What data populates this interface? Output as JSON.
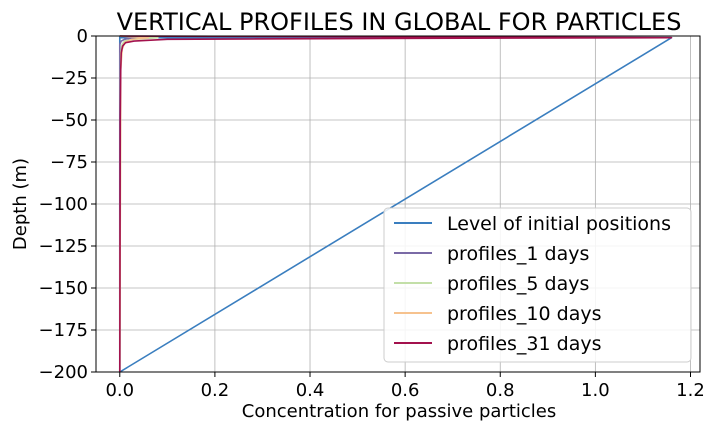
{
  "chart_data": {
    "type": "line",
    "title": "VERTICAL PROFILES IN GLOBAL FOR PARTICLES",
    "xlabel": "Concentration for passive particles",
    "ylabel": "Depth (m)",
    "xlim": [
      -0.05,
      1.22
    ],
    "ylim": [
      -200,
      0
    ],
    "xticks": [
      0.0,
      0.2,
      0.4,
      0.6,
      0.8,
      1.0,
      1.2
    ],
    "xtick_labels": [
      "0.0",
      "0.2",
      "0.4",
      "0.6",
      "0.8",
      "1.0",
      "1.2"
    ],
    "yticks": [
      0,
      -25,
      -50,
      -75,
      -100,
      -125,
      -150,
      -175,
      -200
    ],
    "ytick_labels": [
      "0",
      "−25",
      "−50",
      "−75",
      "−100",
      "−125",
      "−150",
      "−175",
      "−200"
    ],
    "grid": true,
    "legend_position": "lower-right",
    "series": [
      {
        "name": "Level of initial positions",
        "color": "#3a7ebf",
        "points": [
          [
            0.0,
            -1
          ],
          [
            0.0,
            -200
          ],
          [
            1.16,
            -1
          ]
        ],
        "x": [
          0.0,
          0.0,
          0.0,
          1.16,
          0.0
        ],
        "y": [
          0,
          -1,
          -200,
          -1,
          -1
        ]
      },
      {
        "name": "profiles_1 days",
        "color": "#7a6aa6",
        "x": [
          0.0,
          0.03,
          0.01,
          0.003,
          0.0,
          0.0
        ],
        "y": [
          0,
          -1,
          -2,
          -3,
          -5,
          -200
        ]
      },
      {
        "name": "profiles_5 days",
        "color": "#c3dfa8",
        "x": [
          0.0,
          0.08,
          0.03,
          0.01,
          0.005,
          0.002,
          0.0
        ],
        "y": [
          0,
          -1,
          -2,
          -3,
          -5,
          -10,
          -200
        ]
      },
      {
        "name": "profiles_10 days",
        "color": "#f6c28e",
        "x": [
          0.0,
          0.06,
          0.025,
          0.01,
          0.005,
          0.002,
          0.0
        ],
        "y": [
          0,
          -1,
          -2,
          -4,
          -8,
          -20,
          -200
        ]
      },
      {
        "name": "profiles_31 days",
        "color": "#a3114d",
        "x": [
          0.0,
          1.16,
          0.5,
          0.1,
          0.03,
          0.012,
          0.006,
          0.003,
          0.002,
          0.001,
          0.0
        ],
        "y": [
          0,
          -1,
          -1.5,
          -2,
          -3,
          -4,
          -6,
          -10,
          -20,
          -50,
          -200
        ]
      }
    ]
  }
}
